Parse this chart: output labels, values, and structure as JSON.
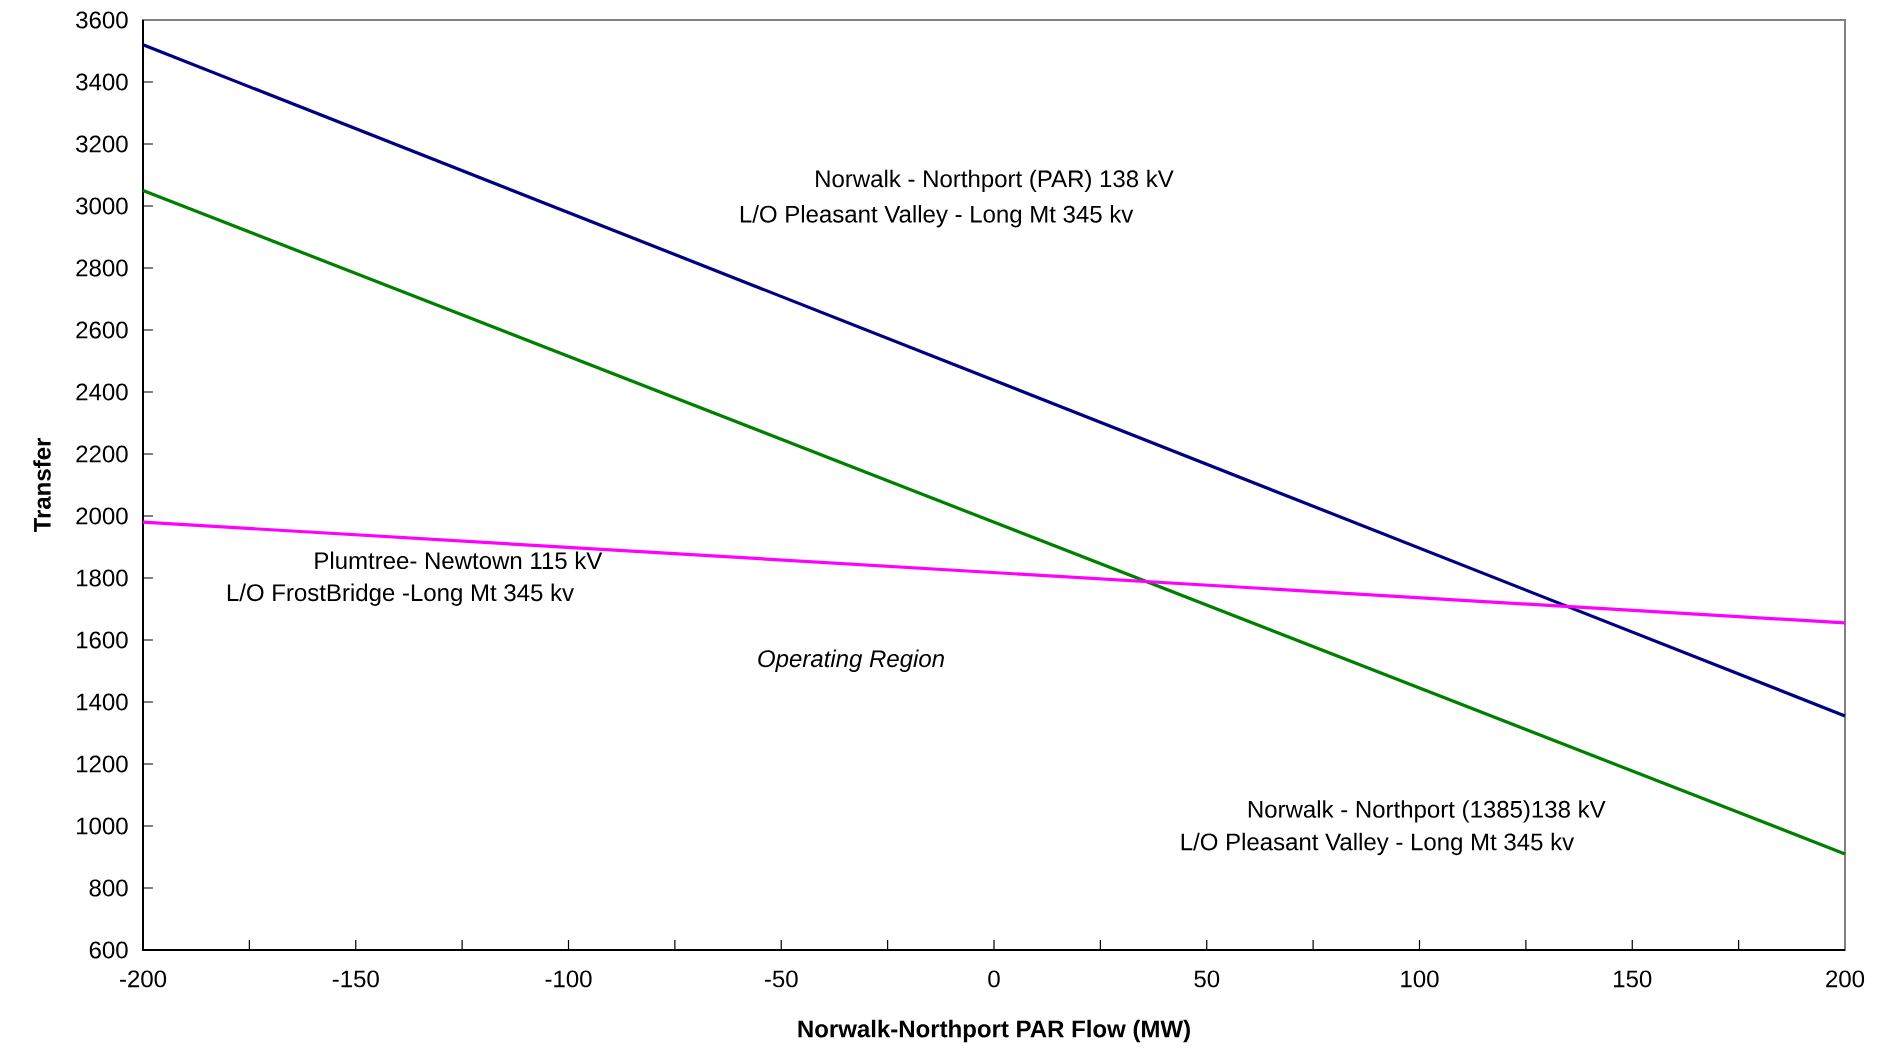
{
  "chart_data": {
    "type": "line",
    "xlabel": "Norwalk-Northport PAR Flow (MW)",
    "ylabel": "Transfer",
    "x": [
      -200,
      200
    ],
    "series": [
      {
        "color": "#000080",
        "values": [
          3520,
          1355
        ]
      },
      {
        "color": "#008000",
        "values": [
          3050,
          910
        ]
      },
      {
        "color": "#ff00ff",
        "values": [
          1980,
          1655
        ]
      }
    ],
    "xlim": [
      -200,
      200
    ],
    "xticks": [
      -200,
      {
        "value": -175,
        "label": null
      },
      -150,
      {
        "value": -125,
        "label": null
      },
      -100,
      {
        "value": -75,
        "label": null
      },
      -50,
      {
        "value": -25,
        "label": null
      },
      0,
      {
        "value": 25,
        "label": null
      },
      50,
      {
        "value": 75,
        "label": null
      },
      100,
      {
        "value": 125,
        "label": null
      },
      150,
      {
        "value": 175,
        "label": null
      },
      200
    ],
    "ylim": [
      600,
      3600
    ],
    "yticks": [
      600,
      800,
      1000,
      1200,
      1400,
      1600,
      1800,
      2000,
      2200,
      2400,
      2600,
      2800,
      3000,
      3200,
      3400,
      3600
    ],
    "grid": false,
    "marker": "none",
    "line_style": "solid",
    "annotations": [
      "Norwalk - Northport (PAR) 138 kV",
      "L/O Pleasant Valley - Long Mt 345 kv",
      "Plumtree- Newtown 115 kV",
      "L/O FrostBridge -Long Mt 345 kv",
      "*Operating Region*",
      "Norwalk - Northport (1385)138 kV",
      "L/O Pleasant Valley - Long Mt 345 kv"
    ]
  }
}
